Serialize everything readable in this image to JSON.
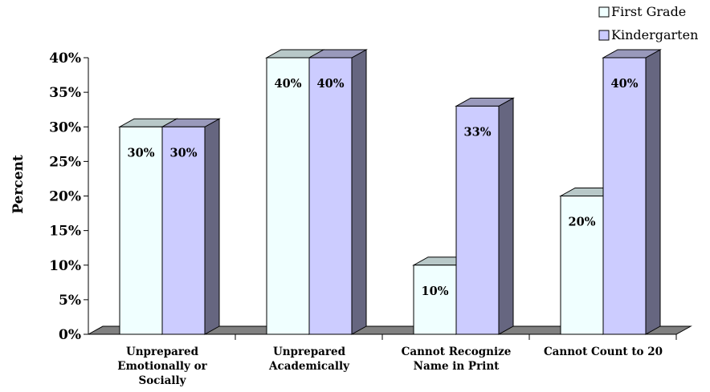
{
  "chart_data": {
    "type": "bar",
    "style": "3d-clustered",
    "categories": [
      [
        "Unprepared",
        "Emotionally or",
        "Socially"
      ],
      [
        "Unprepared",
        "Academically"
      ],
      [
        "Cannot Recognize",
        "Name in Print"
      ],
      [
        "Cannot Count to 20"
      ]
    ],
    "series": [
      {
        "name": "First Grade",
        "values": [
          30,
          40,
          10,
          20
        ],
        "color": "#f0ffff"
      },
      {
        "name": "Kindergarten",
        "values": [
          30,
          40,
          33,
          40
        ],
        "color": "#ccccff"
      }
    ],
    "data_labels": [
      [
        "30%",
        "40%",
        "10%",
        "20%"
      ],
      [
        "30%",
        "40%",
        "33%",
        "40%"
      ]
    ],
    "ylabel": "Percent",
    "ylim": [
      0,
      40
    ],
    "yticks": [
      "0%",
      "5%",
      "10%",
      "15%",
      "20%",
      "25%",
      "30%",
      "35%",
      "40%"
    ],
    "ytick_values": [
      0,
      5,
      10,
      15,
      20,
      25,
      30,
      35,
      40
    ],
    "legend_position": "top-right",
    "grid": false,
    "floor_color": "#808080",
    "side_color": "#666680"
  }
}
